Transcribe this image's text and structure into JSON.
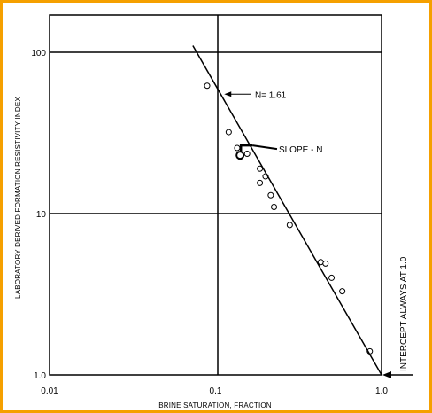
{
  "chart_data": {
    "type": "scatter",
    "title": "",
    "xlabel": "BRINE SATURATION, FRACTION",
    "ylabel": "LABORATORY DERIVED FORMATION RESISTIVITY INDEX",
    "x_scale": "log",
    "y_scale": "log",
    "xlim": [
      0.01,
      1.0
    ],
    "ylim": [
      1.0,
      200
    ],
    "xticks": [
      "0.01",
      "0.1",
      "1.0"
    ],
    "yticks": [
      "1.0",
      "10",
      "100"
    ],
    "grid": true,
    "series": [
      {
        "kind": "points",
        "marker": "open-circle",
        "points": [
          [
            0.089,
            62
          ],
          [
            0.12,
            32
          ],
          [
            0.135,
            25.5
          ],
          [
            0.155,
            23.5
          ],
          [
            0.185,
            19
          ],
          [
            0.2,
            17
          ],
          [
            0.185,
            15.5
          ],
          [
            0.215,
            13
          ],
          [
            0.225,
            11
          ],
          [
            0.28,
            8.5
          ],
          [
            0.43,
            5
          ],
          [
            0.46,
            4.9
          ],
          [
            0.5,
            4
          ],
          [
            0.58,
            3.3
          ],
          [
            0.85,
            1.4
          ]
        ]
      },
      {
        "kind": "fit-line",
        "slope": -1.61,
        "from": [
          0.073,
          110
        ],
        "to": [
          1.0,
          1.0
        ]
      }
    ],
    "annotations": [
      {
        "text": "N= 1.61",
        "at": [
          0.2,
          55
        ],
        "arrow_to": [
          0.11,
          55
        ]
      },
      {
        "text": "SLOPE - N",
        "at": [
          0.3,
          24.5
        ],
        "arrow_to": [
          0.155,
          24.5
        ]
      },
      {
        "text": "INTERCEPT ALWAYS AT 1.0",
        "position": "right-edge",
        "arrow_to": [
          1.0,
          1.0
        ]
      }
    ],
    "colors": {
      "frame": "#f5a000",
      "ink": "#000000"
    }
  }
}
